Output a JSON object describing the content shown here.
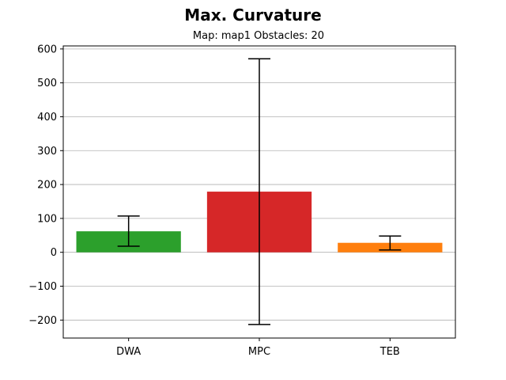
{
  "chart_data": {
    "type": "bar",
    "title": "Max. Curvature",
    "subtitle": "Map: map1 Obstacles: 20",
    "xlabel": "",
    "ylabel": "",
    "categories": [
      "DWA",
      "MPC",
      "TEB"
    ],
    "values": [
      62,
      179,
      28
    ],
    "error_low": [
      18,
      -213,
      7
    ],
    "error_high": [
      107,
      571,
      48
    ],
    "colors": [
      "#2ca02c",
      "#d62728",
      "#ff7f0e"
    ],
    "ylim": [
      -253,
      609
    ],
    "yticks": [
      -200,
      -100,
      0,
      100,
      200,
      300,
      400,
      500,
      600
    ],
    "ytick_labels": [
      "−200",
      "−100",
      "0",
      "100",
      "200",
      "300",
      "400",
      "500",
      "600"
    ],
    "grid": "horizontal",
    "legend": "none"
  }
}
